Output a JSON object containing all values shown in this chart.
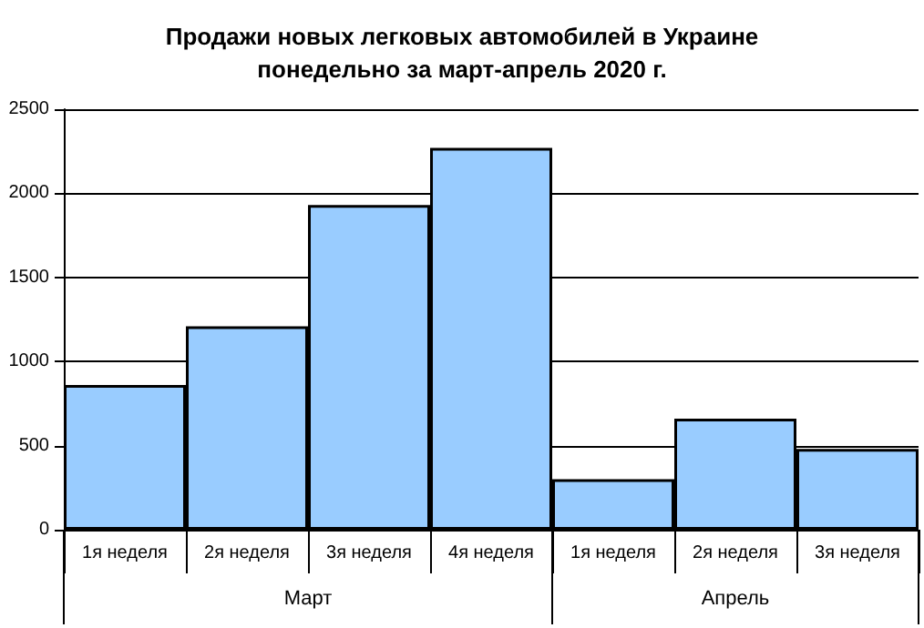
{
  "chart_data": {
    "type": "bar",
    "title": "Продажи новых легковых автомобилей в Украине\nпонедельно за март-апрель 2020 г.",
    "categories": [
      "1я неделя",
      "2я неделя",
      "3я неделя",
      "4я неделя",
      "1я неделя",
      "2я неделя",
      "3я неделя"
    ],
    "values": [
      860,
      1210,
      1930,
      2270,
      300,
      660,
      480
    ],
    "color": "#99ccff",
    "ylim": [
      0,
      2500
    ],
    "yticks": [
      0,
      500,
      1000,
      1500,
      2000,
      2500
    ],
    "grid": "y",
    "annotations": [
      "Март",
      "Апрель"
    ]
  }
}
